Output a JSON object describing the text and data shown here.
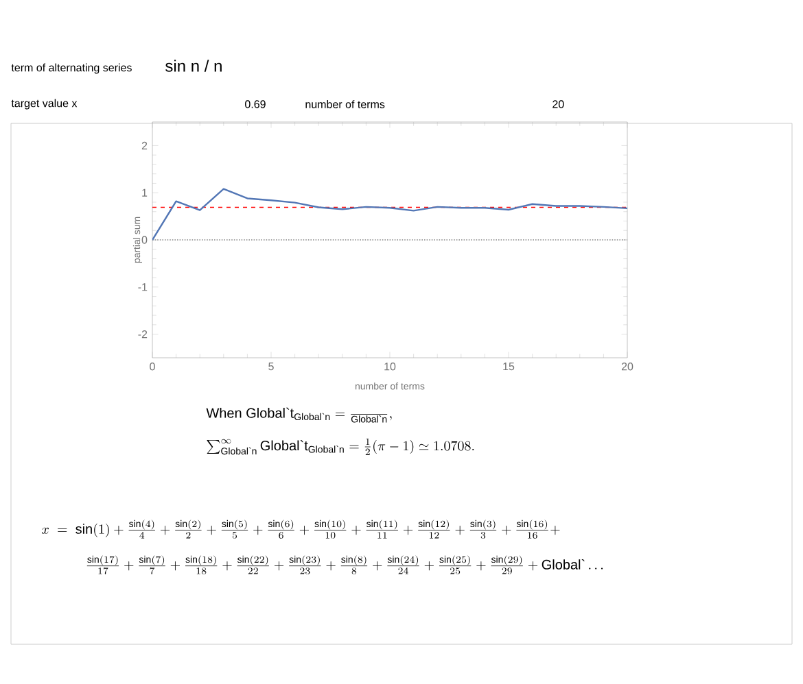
{
  "chart_data": {
    "type": "line",
    "xlabel": "number of terms",
    "ylabel": "partial sum",
    "x": [
      0,
      1,
      2,
      3,
      4,
      5,
      6,
      7,
      8,
      9,
      10,
      11,
      12,
      13,
      14,
      15,
      16,
      17,
      18,
      19,
      20
    ],
    "series": [
      {
        "color": "#5276b5",
        "values": [
          0,
          0.82,
          0.63,
          1.08,
          0.88,
          0.84,
          0.79,
          0.69,
          0.65,
          0.7,
          0.68,
          0.62,
          0.7,
          0.68,
          0.68,
          0.64,
          0.76,
          0.72,
          0.72,
          0.7,
          0.67
        ]
      }
    ],
    "xlim": [
      0,
      20
    ],
    "ylim": [
      -2.5,
      2.5
    ],
    "xticks": [
      0,
      5,
      10,
      15,
      20
    ],
    "yticks": [
      -2,
      -1,
      0,
      1,
      2
    ],
    "marker": "none",
    "line_style": "solid",
    "grid": false,
    "ref_lines": [
      {
        "axis": "y",
        "value": 0.69,
        "color": "#ff0000",
        "line_style": "dashed"
      },
      {
        "axis": "y",
        "value": 0,
        "color": "#888888",
        "line_style": "dotted"
      }
    ],
    "annotations": [
      "term of alternating series",
      "sin n / n",
      "target value x",
      "0.69",
      "number of terms",
      "20",
      "\\text{When Global\\textasciigrave t}_{\\text{Global\\textasciigrave n}} = \\frac{\\phantom{\\sin n}}{\\text{Global\\textasciigrave n}},",
      "\\sum_{\\text{Global\\textasciigrave n}}^{\\infty} \\text{Global\\textasciigrave t}_{\\text{Global\\textasciigrave n}} = \\frac{1}{2}(\\pi-1) \\simeq 1.0708.",
      "x\\ =\\ \\sin(1)+\\frac{\\sin(4)}{4}+\\frac{\\sin(2)}{2}+\\frac{\\sin(5)}{5}+\\frac{\\sin(6)}{6}+\\frac{\\sin(10)}{10}+\\frac{\\sin(11)}{11}+\\frac{\\sin(12)}{12}+\\frac{\\sin(3)}{3}+\\frac{\\sin(16)}{16}+",
      "\\frac{\\sin(17)}{17}+\\frac{\\sin(7)}{7}+\\frac{\\sin(18)}{18}+\\frac{\\sin(22)}{22}+\\frac{\\sin(23)}{23}+\\frac{\\sin(8)}{8}+\\frac{\\sin(24)}{24}+\\frac{\\sin(25)}{25}+\\frac{\\sin(29)}{29}+\\text{Global\\textasciigrave}\\ldots"
    ]
  }
}
